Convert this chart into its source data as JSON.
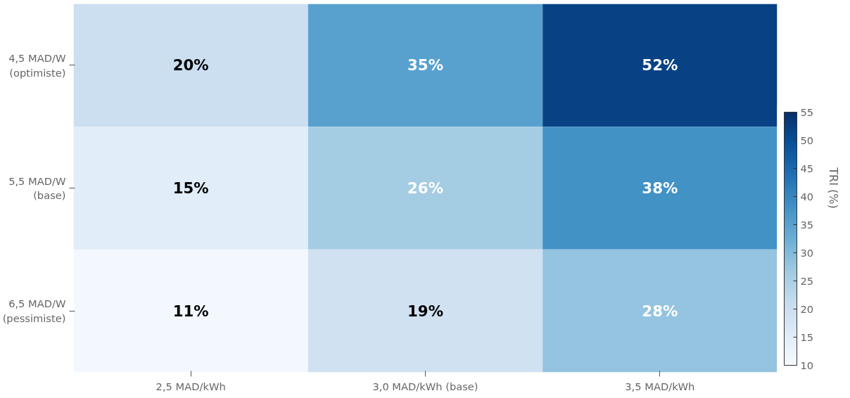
{
  "chart_data": {
    "type": "heatmap",
    "categories": [
      "2,5 MAD/kWh",
      "3,0 MAD/kWh (base)",
      "3,5 MAD/kWh"
    ],
    "y_categories": [
      "4,5 MAD/W\n(optimiste)",
      "5,5 MAD/W\n(base)",
      "6,5 MAD/W\n(pessimiste)"
    ],
    "cells": [
      [
        20,
        35,
        52
      ],
      [
        15,
        26,
        38
      ],
      [
        11,
        19,
        28
      ]
    ],
    "cell_labels": [
      [
        "20%",
        "35%",
        "52%"
      ],
      [
        "15%",
        "26%",
        "38%"
      ],
      [
        "11%",
        "19%",
        "28%"
      ]
    ],
    "clim": [
      10,
      55
    ],
    "cticks": [
      10,
      15,
      20,
      25,
      30,
      35,
      40,
      45,
      50,
      55
    ],
    "clabel": "TRI (%)",
    "grid": false
  }
}
